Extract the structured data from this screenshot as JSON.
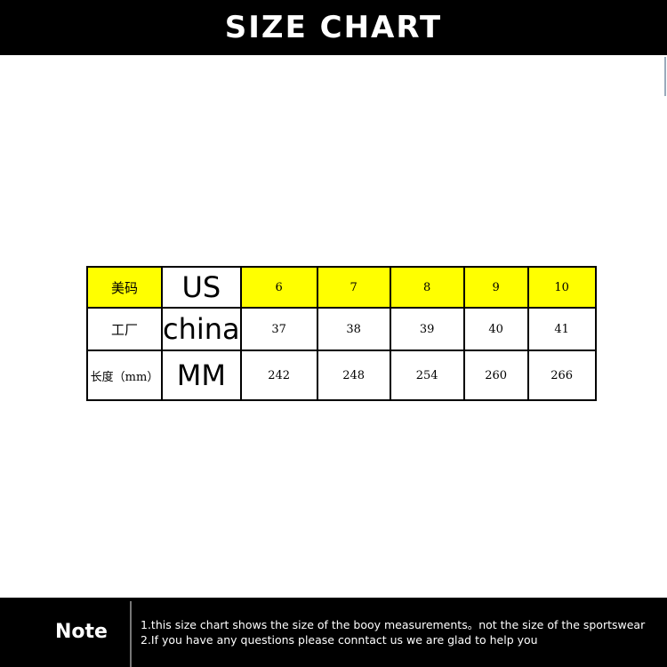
{
  "title": "SIZE CHART",
  "table": {
    "rows": [
      {
        "label": "美码",
        "unit": "US",
        "values": [
          "6",
          "7",
          "8",
          "9",
          "10"
        ]
      },
      {
        "label": "工厂",
        "unit": "china",
        "values": [
          "37",
          "38",
          "39",
          "40",
          "41"
        ]
      },
      {
        "label": "长度（mm）",
        "unit": "MM",
        "values": [
          "242",
          "248",
          "254",
          "260",
          "266"
        ]
      }
    ],
    "highlight_color": "#ffff00"
  },
  "note": {
    "label": "Note",
    "lines": [
      "1.this size chart shows the size of the booy measurements。not the size of the sportswear",
      "2.If you have any questions please conntact us we are glad to help you"
    ]
  }
}
